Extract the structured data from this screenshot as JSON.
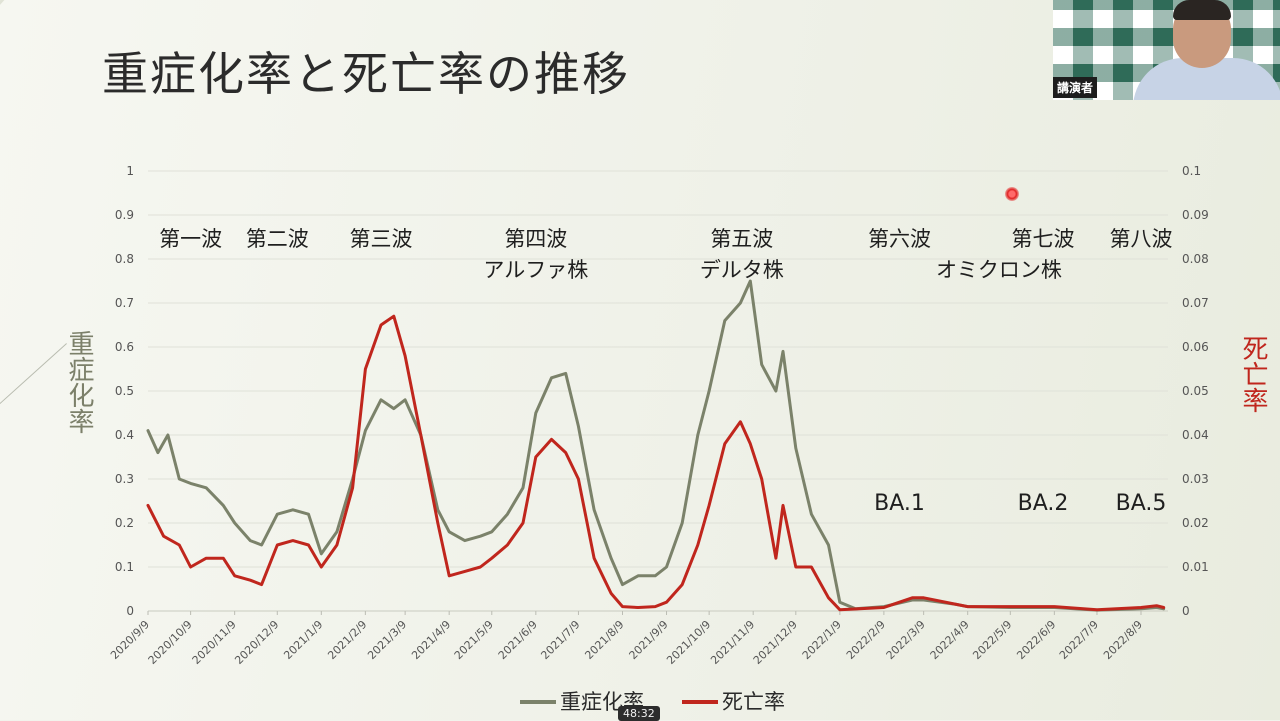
{
  "slide": {
    "title": "重症化率と死亡率の推移"
  },
  "webcam": {
    "speaker_label": "講演者"
  },
  "video": {
    "timestamp": "48:32"
  },
  "chart_data": {
    "type": "line",
    "x_categories": [
      "2020/9/9",
      "2020/10/9",
      "2020/11/9",
      "2020/12/9",
      "2021/1/9",
      "2021/2/9",
      "2021/3/9",
      "2021/4/9",
      "2021/5/9",
      "2021/6/9",
      "2021/7/9",
      "2021/8/9",
      "2021/9/9",
      "2021/10/9",
      "2021/11/9",
      "2021/12/9",
      "2022/1/9",
      "2022/2/9",
      "2022/3/9",
      "2022/4/9",
      "2022/5/9",
      "2022/6/9",
      "2022/7/9",
      "2022/8/9"
    ],
    "left_axis": {
      "label": "重症化率",
      "range": [
        0,
        1
      ],
      "ticks": [
        "0",
        "0.1",
        "0.2",
        "0.3",
        "0.4",
        "0.5",
        "0.6",
        "0.7",
        "0.8",
        "0.9",
        "1"
      ]
    },
    "right_axis": {
      "label": "死亡率",
      "range": [
        0,
        0.1
      ],
      "ticks": [
        "0",
        "0.01",
        "0.02",
        "0.03",
        "0.04",
        "0.05",
        "0.06",
        "0.07",
        "0.08",
        "0.09",
        "0.1"
      ]
    },
    "grid": true,
    "legend_position": "bottom",
    "series": [
      {
        "name": "重症化率",
        "axis": "left",
        "color": "#7b826a",
        "points": [
          [
            "2020/9/9",
            0.41
          ],
          [
            "2020/9/16",
            0.36
          ],
          [
            "2020/9/23",
            0.4
          ],
          [
            "2020/10/1",
            0.3
          ],
          [
            "2020/10/9",
            0.29
          ],
          [
            "2020/10/20",
            0.28
          ],
          [
            "2020/11/1",
            0.24
          ],
          [
            "2020/11/9",
            0.2
          ],
          [
            "2020/11/20",
            0.16
          ],
          [
            "2020/11/28",
            0.15
          ],
          [
            "2020/12/9",
            0.22
          ],
          [
            "2020/12/20",
            0.23
          ],
          [
            "2020/12/31",
            0.22
          ],
          [
            "2021/1/9",
            0.13
          ],
          [
            "2021/1/20",
            0.18
          ],
          [
            "2021/1/31",
            0.3
          ],
          [
            "2021/2/9",
            0.41
          ],
          [
            "2021/2/20",
            0.48
          ],
          [
            "2021/3/1",
            0.46
          ],
          [
            "2021/3/9",
            0.48
          ],
          [
            "2021/3/20",
            0.4
          ],
          [
            "2021/4/1",
            0.23
          ],
          [
            "2021/4/9",
            0.18
          ],
          [
            "2021/4/20",
            0.16
          ],
          [
            "2021/5/1",
            0.17
          ],
          [
            "2021/5/9",
            0.18
          ],
          [
            "2021/5/20",
            0.22
          ],
          [
            "2021/5/31",
            0.28
          ],
          [
            "2021/6/9",
            0.45
          ],
          [
            "2021/6/20",
            0.53
          ],
          [
            "2021/6/30",
            0.54
          ],
          [
            "2021/7/9",
            0.42
          ],
          [
            "2021/7/20",
            0.23
          ],
          [
            "2021/8/1",
            0.12
          ],
          [
            "2021/8/9",
            0.06
          ],
          [
            "2021/8/20",
            0.08
          ],
          [
            "2021/9/1",
            0.08
          ],
          [
            "2021/9/9",
            0.1
          ],
          [
            "2021/9/20",
            0.2
          ],
          [
            "2021/10/1",
            0.4
          ],
          [
            "2021/10/9",
            0.5
          ],
          [
            "2021/10/20",
            0.66
          ],
          [
            "2021/10/31",
            0.7
          ],
          [
            "2021/11/7",
            0.75
          ],
          [
            "2021/11/15",
            0.56
          ],
          [
            "2021/11/25",
            0.5
          ],
          [
            "2021/11/30",
            0.59
          ],
          [
            "2021/12/9",
            0.37
          ],
          [
            "2021/12/20",
            0.22
          ],
          [
            "2022/1/1",
            0.15
          ],
          [
            "2022/1/9",
            0.02
          ],
          [
            "2022/1/20",
            0.005
          ],
          [
            "2022/2/9",
            0.01
          ],
          [
            "2022/3/1",
            0.025
          ],
          [
            "2022/3/9",
            0.025
          ],
          [
            "2022/4/1",
            0.015
          ],
          [
            "2022/4/9",
            0.01
          ],
          [
            "2022/5/9",
            0.008
          ],
          [
            "2022/6/9",
            0.008
          ],
          [
            "2022/7/9",
            0.002
          ],
          [
            "2022/8/9",
            0.005
          ],
          [
            "2022/8/20",
            0.008
          ],
          [
            "2022/8/25",
            0.005
          ]
        ]
      },
      {
        "name": "死亡率",
        "axis": "right",
        "color": "#c0261d",
        "points": [
          [
            "2020/9/9",
            0.024
          ],
          [
            "2020/9/20",
            0.017
          ],
          [
            "2020/10/1",
            0.015
          ],
          [
            "2020/10/9",
            0.01
          ],
          [
            "2020/10/20",
            0.012
          ],
          [
            "2020/11/1",
            0.012
          ],
          [
            "2020/11/9",
            0.008
          ],
          [
            "2020/11/20",
            0.007
          ],
          [
            "2020/11/28",
            0.006
          ],
          [
            "2020/12/9",
            0.015
          ],
          [
            "2020/12/20",
            0.016
          ],
          [
            "2020/12/31",
            0.015
          ],
          [
            "2021/1/9",
            0.01
          ],
          [
            "2021/1/20",
            0.015
          ],
          [
            "2021/1/31",
            0.028
          ],
          [
            "2021/2/9",
            0.055
          ],
          [
            "2021/2/20",
            0.065
          ],
          [
            "2021/3/1",
            0.067
          ],
          [
            "2021/3/9",
            0.058
          ],
          [
            "2021/3/20",
            0.04
          ],
          [
            "2021/4/1",
            0.02
          ],
          [
            "2021/4/9",
            0.008
          ],
          [
            "2021/4/20",
            0.009
          ],
          [
            "2021/5/1",
            0.01
          ],
          [
            "2021/5/9",
            0.012
          ],
          [
            "2021/5/20",
            0.015
          ],
          [
            "2021/5/31",
            0.02
          ],
          [
            "2021/6/9",
            0.035
          ],
          [
            "2021/6/20",
            0.039
          ],
          [
            "2021/6/30",
            0.036
          ],
          [
            "2021/7/9",
            0.03
          ],
          [
            "2021/7/20",
            0.012
          ],
          [
            "2021/8/1",
            0.004
          ],
          [
            "2021/8/9",
            0.001
          ],
          [
            "2021/8/20",
            0.0008
          ],
          [
            "2021/9/1",
            0.001
          ],
          [
            "2021/9/9",
            0.002
          ],
          [
            "2021/9/20",
            0.006
          ],
          [
            "2021/10/1",
            0.015
          ],
          [
            "2021/10/9",
            0.024
          ],
          [
            "2021/10/20",
            0.038
          ],
          [
            "2021/10/31",
            0.043
          ],
          [
            "2021/11/7",
            0.038
          ],
          [
            "2021/11/15",
            0.03
          ],
          [
            "2021/11/25",
            0.012
          ],
          [
            "2021/11/30",
            0.024
          ],
          [
            "2021/12/9",
            0.01
          ],
          [
            "2021/12/20",
            0.01
          ],
          [
            "2022/1/1",
            0.003
          ],
          [
            "2022/1/9",
            0.0003
          ],
          [
            "2022/2/9",
            0.0008
          ],
          [
            "2022/3/1",
            0.003
          ],
          [
            "2022/3/9",
            0.003
          ],
          [
            "2022/4/1",
            0.0015
          ],
          [
            "2022/4/9",
            0.001
          ],
          [
            "2022/5/9",
            0.001
          ],
          [
            "2022/6/9",
            0.001
          ],
          [
            "2022/7/9",
            0.0003
          ],
          [
            "2022/8/9",
            0.0008
          ],
          [
            "2022/8/20",
            0.0012
          ],
          [
            "2022/8/25",
            0.0008
          ]
        ]
      }
    ],
    "annotations": [
      {
        "text": "第一波",
        "x": "2020/10/9",
        "row": 1
      },
      {
        "text": "第二波",
        "x": "2020/12/9",
        "row": 1
      },
      {
        "text": "第三波",
        "x": "2021/2/20",
        "row": 1
      },
      {
        "text": "第四波",
        "x": "2021/6/9",
        "row": 1
      },
      {
        "text": "アルファ株",
        "x": "2021/6/9",
        "row": 2
      },
      {
        "text": "第五波",
        "x": "2021/11/1",
        "row": 1
      },
      {
        "text": "デルタ株",
        "x": "2021/11/1",
        "row": 2
      },
      {
        "text": "第六波",
        "x": "2022/2/20",
        "row": 1
      },
      {
        "text": "第七波",
        "x": "2022/6/1",
        "row": 1
      },
      {
        "text": "第八波",
        "x": "2022/8/9",
        "row": 1
      },
      {
        "text": "オミクロン株",
        "x": "2022/5/1",
        "row": 2
      },
      {
        "text": "BA.1",
        "x": "2022/2/20",
        "row": 3
      },
      {
        "text": "BA.2",
        "x": "2022/6/1",
        "row": 3
      },
      {
        "text": "BA.5",
        "x": "2022/8/9",
        "row": 3
      }
    ]
  }
}
